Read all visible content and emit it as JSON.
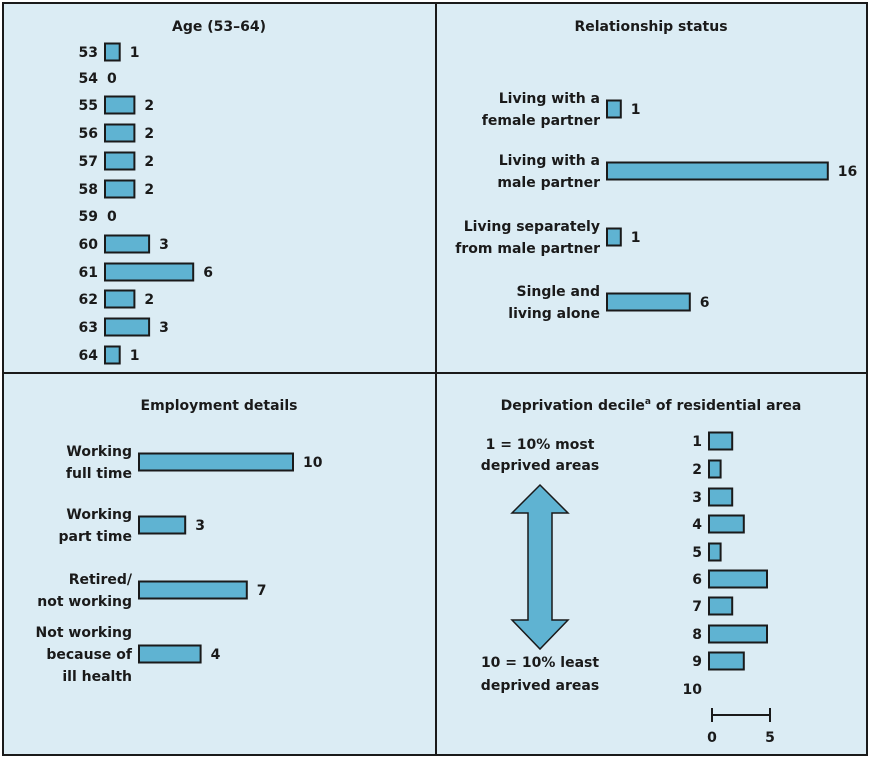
{
  "colors": {
    "panel_bg": "#dbecf4",
    "bar_fill": "#5fb3d2",
    "stroke": "#1a1a1a"
  },
  "chart_data": [
    {
      "id": "age",
      "type": "bar",
      "orientation": "horizontal",
      "title": "Age (53–64)",
      "categories": [
        "53",
        "54",
        "55",
        "56",
        "57",
        "58",
        "59",
        "60",
        "61",
        "62",
        "63",
        "64"
      ],
      "values": [
        1,
        0,
        2,
        2,
        2,
        2,
        0,
        3,
        6,
        2,
        3,
        1
      ]
    },
    {
      "id": "relationship",
      "type": "bar",
      "orientation": "horizontal",
      "title": "Relationship status",
      "categories": [
        [
          "Living with a",
          "female partner"
        ],
        [
          "Living with a",
          "male partner"
        ],
        [
          "Living separately",
          "from male partner"
        ],
        [
          "Single and",
          "living alone"
        ]
      ],
      "values": [
        1,
        16,
        1,
        6
      ]
    },
    {
      "id": "employment",
      "type": "bar",
      "orientation": "horizontal",
      "title": "Employment details",
      "categories": [
        [
          "Working",
          "full time"
        ],
        [
          "Working",
          "part time"
        ],
        [
          "Retired/",
          "not working"
        ],
        [
          "Not working",
          "because of",
          "ill health"
        ]
      ],
      "values": [
        10,
        3,
        7,
        4
      ]
    },
    {
      "id": "deprivation",
      "type": "bar",
      "orientation": "horizontal",
      "title": "Deprivation decile",
      "title_superscript": "a",
      "title_suffix": " of residential area",
      "categories": [
        "1",
        "2",
        "3",
        "4",
        "5",
        "6",
        "7",
        "8",
        "9",
        "10"
      ],
      "values": [
        2,
        1,
        2,
        3,
        1,
        5,
        2,
        5,
        3,
        0
      ],
      "scale_ticks": [
        0,
        5
      ],
      "scale_labels": [
        "0",
        "5"
      ],
      "annotation_top": [
        "1 = 10% most",
        "deprived areas"
      ],
      "annotation_bottom": [
        "10 = 10% least",
        "deprived areas"
      ]
    }
  ]
}
